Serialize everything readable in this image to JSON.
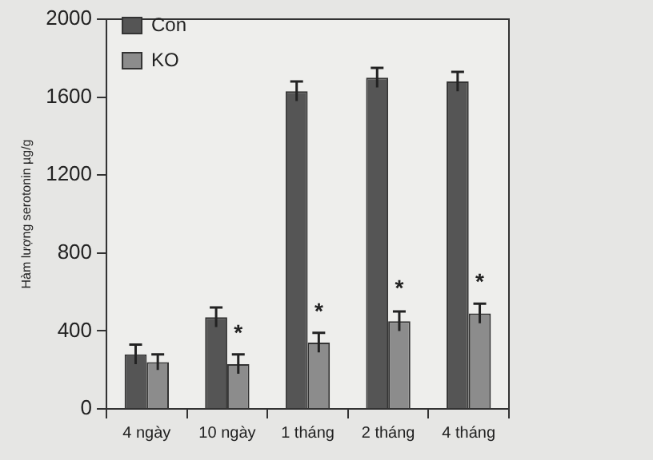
{
  "chart_data": {
    "type": "bar",
    "ylabel": "Hàm lượng serotonin µg/g",
    "categories": [
      "4 ngày",
      "10 ngày",
      "1 tháng",
      "2 tháng",
      "4 tháng"
    ],
    "series": [
      {
        "name": "Con",
        "color": "#555555",
        "values": [
          280,
          470,
          1630,
          1700,
          1680
        ],
        "errors": [
          50,
          50,
          50,
          50,
          50
        ]
      },
      {
        "name": "KO",
        "color": "#8c8c8c",
        "values": [
          240,
          230,
          340,
          450,
          490
        ],
        "errors": [
          40,
          50,
          50,
          50,
          50
        ]
      }
    ],
    "ylim": [
      0,
      2000
    ],
    "yticks": [
      0,
      400,
      800,
      1200,
      1600,
      2000
    ],
    "grid": false,
    "legend": "top left",
    "annotations": [
      {
        "text": "*",
        "x": "10 ngày",
        "y": 410
      },
      {
        "text": "*",
        "x": "1 tháng",
        "y": 520
      },
      {
        "text": "*",
        "x": "2 tháng",
        "y": 640
      },
      {
        "text": "*",
        "x": "4 tháng",
        "y": 670
      }
    ]
  }
}
